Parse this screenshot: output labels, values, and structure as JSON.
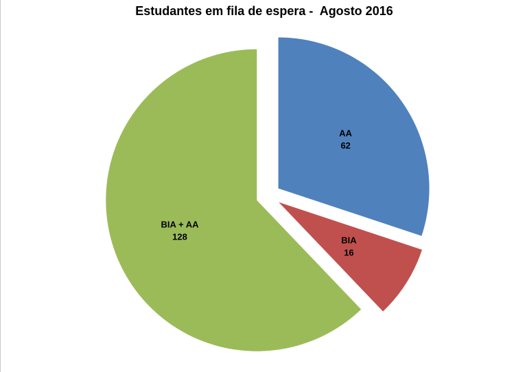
{
  "chart_data": {
    "type": "pie",
    "title": "Estudantes em fila de espera -  Agosto 2016",
    "slices": [
      {
        "label": "AA",
        "value": 62,
        "color": "#4F81BD"
      },
      {
        "label": "BIA",
        "value": 16,
        "color": "#C0504D"
      },
      {
        "label": "BIA + AA",
        "value": 128,
        "color": "#9BBB59"
      }
    ],
    "start_angle_deg": 0,
    "direction": "clockwise",
    "exploded": true,
    "legend": "none",
    "background": "#FFFFFF",
    "label_color": "#000000"
  }
}
